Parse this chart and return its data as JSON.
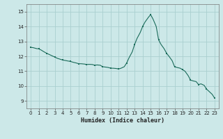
{
  "xlabel": "Humidex (Indice chaleur)",
  "ylabel": "",
  "background_color": "#cce8e8",
  "grid_color": "#aacfcf",
  "line_color": "#1a6b5a",
  "marker_color": "#1a6b5a",
  "xlim": [
    -0.5,
    23.5
  ],
  "ylim": [
    8.5,
    15.5
  ],
  "yticks": [
    9,
    10,
    11,
    12,
    13,
    14,
    15
  ],
  "xticks": [
    0,
    1,
    2,
    3,
    4,
    5,
    6,
    7,
    8,
    9,
    10,
    11,
    12,
    13,
    14,
    15,
    16,
    17,
    18,
    19,
    20,
    21,
    22,
    23
  ],
  "x": [
    0,
    1,
    2,
    3,
    4,
    5,
    6,
    7,
    8,
    9,
    10,
    11,
    12,
    13,
    14,
    15,
    16,
    17,
    18,
    19,
    20,
    21,
    22,
    23
  ],
  "y": [
    12.6,
    12.5,
    12.2,
    11.95,
    11.75,
    11.65,
    11.5,
    11.45,
    11.4,
    11.3,
    11.2,
    11.15,
    11.55,
    12.8,
    14.0,
    14.8,
    13.1,
    12.2,
    11.3,
    11.1,
    10.4,
    10.1,
    9.8,
    9.2
  ],
  "smooth_x": [
    0,
    0.3,
    0.7,
    1,
    1.3,
    1.6,
    2,
    2.4,
    2.8,
    3,
    3.3,
    3.7,
    4,
    4.3,
    4.7,
    5,
    5.3,
    5.7,
    6,
    6.3,
    6.7,
    7,
    7.3,
    7.7,
    8,
    8.3,
    8.7,
    9,
    9.3,
    9.7,
    10,
    10.3,
    10.7,
    11,
    11.3,
    11.7,
    12,
    12.3,
    12.7,
    13,
    13.3,
    13.7,
    14,
    14.3,
    14.7,
    15,
    15.3,
    15.7,
    16,
    16.3,
    16.7,
    17,
    17.3,
    17.7,
    18,
    18.3,
    18.7,
    19,
    19.3,
    19.7,
    20,
    20.3,
    20.7,
    21,
    21.3,
    21.7,
    22,
    22.3,
    22.7,
    23
  ],
  "smooth_y": [
    12.6,
    12.58,
    12.52,
    12.5,
    12.42,
    12.32,
    12.2,
    12.1,
    12.0,
    11.95,
    11.87,
    11.8,
    11.75,
    11.72,
    11.68,
    11.65,
    11.6,
    11.55,
    11.5,
    11.5,
    11.48,
    11.45,
    11.46,
    11.45,
    11.4,
    11.42,
    11.4,
    11.3,
    11.28,
    11.25,
    11.2,
    11.2,
    11.18,
    11.15,
    11.2,
    11.3,
    11.55,
    11.9,
    12.3,
    12.8,
    13.2,
    13.6,
    14.0,
    14.3,
    14.6,
    14.8,
    14.5,
    14.0,
    13.1,
    12.8,
    12.5,
    12.2,
    12.0,
    11.7,
    11.3,
    11.25,
    11.2,
    11.1,
    11.0,
    10.7,
    10.4,
    10.35,
    10.3,
    10.1,
    10.15,
    10.05,
    9.8,
    9.65,
    9.45,
    9.2
  ]
}
